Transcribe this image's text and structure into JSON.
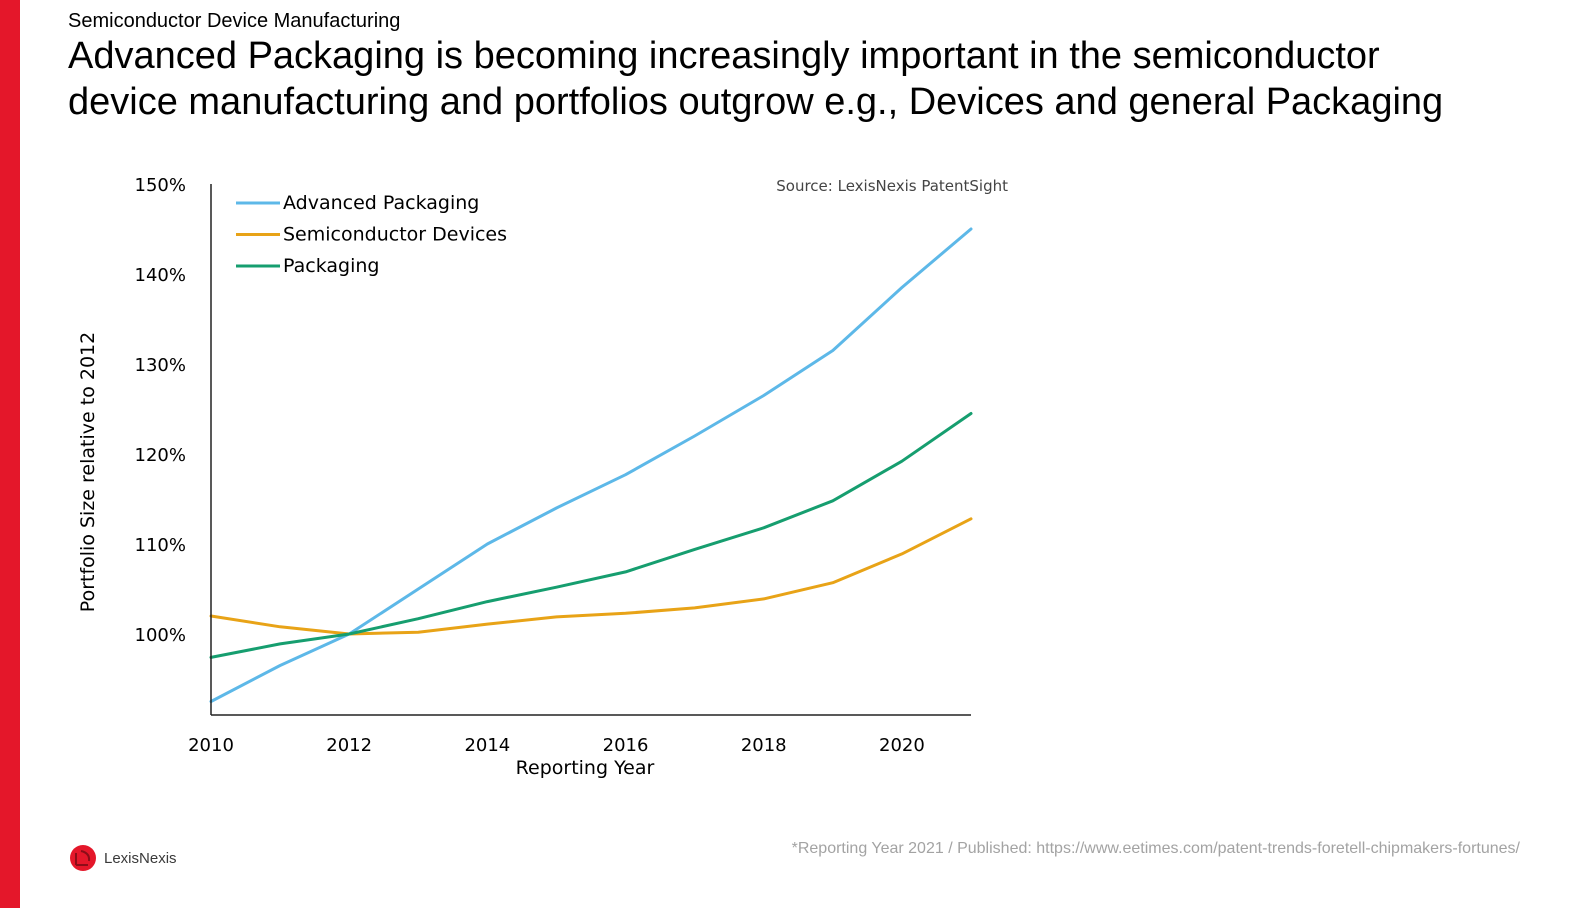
{
  "header": {
    "kicker": "Semiconductor Device Manufacturing",
    "title_line1": "Advanced Packaging is becoming increasingly important in the semiconductor",
    "title_line2": "device manufacturing and portfolios outgrow e.g., Devices and general Packaging"
  },
  "footer": {
    "note": "*Reporting Year 2021 / Published: https://www.eetimes.com/patent-trends-foretell-chipmakers-fortunes/",
    "logo_text": "LexisNexis"
  },
  "colors": {
    "brand_red": "#e4172a",
    "advanced_packaging": "#5db8e8",
    "semiconductor_devices": "#e8a317",
    "packaging": "#169e6f"
  },
  "chart_data": {
    "type": "line",
    "title": "",
    "source": "Source: LexisNexis PatentSight",
    "xlabel": "Reporting Year",
    "ylabel": "Portfolio Size relative to 2012",
    "x": [
      2010,
      2011,
      2012,
      2013,
      2014,
      2015,
      2016,
      2017,
      2018,
      2019,
      2020,
      2021
    ],
    "xlim": [
      2010,
      2021
    ],
    "ylim": [
      91,
      150
    ],
    "x_ticks": [
      2010,
      2012,
      2014,
      2016,
      2018,
      2020
    ],
    "y_ticks": [
      100,
      110,
      120,
      130,
      140,
      150
    ],
    "y_tick_labels": [
      "100%",
      "110%",
      "120%",
      "130%",
      "140%",
      "150%"
    ],
    "legend_position": "top-left",
    "series": [
      {
        "name": "Advanced Packaging",
        "color": "#5db8e8",
        "values": [
          92.5,
          96.5,
          100,
          105,
          110,
          114,
          117.7,
          122,
          126.5,
          131.5,
          138.5,
          145
        ]
      },
      {
        "name": "Semiconductor Devices",
        "color": "#e8a317",
        "values": [
          102,
          100.8,
          100,
          100.2,
          101.1,
          101.9,
          102.3,
          102.9,
          103.9,
          105.7,
          108.9,
          112.8
        ]
      },
      {
        "name": "Packaging",
        "color": "#169e6f",
        "values": [
          97.4,
          98.9,
          100,
          101.7,
          103.6,
          105.2,
          106.9,
          109.4,
          111.8,
          114.8,
          119.2,
          124.5
        ]
      }
    ]
  }
}
